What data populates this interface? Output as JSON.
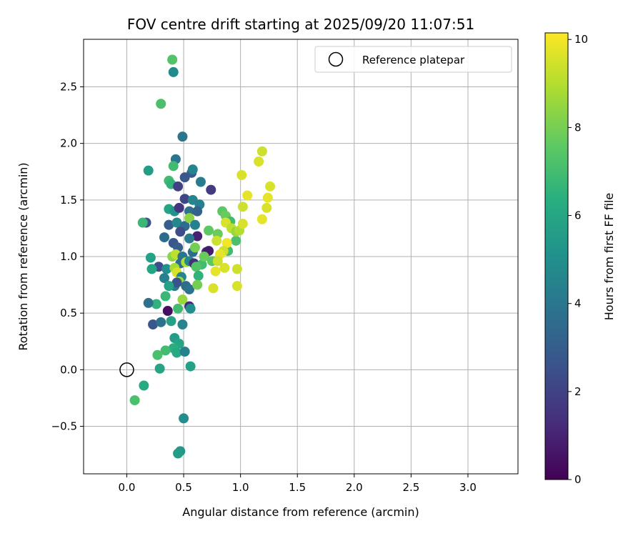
{
  "chart_data": {
    "type": "scatter",
    "title": "FOV centre drift starting at 2025/09/20 11:07:51",
    "xlabel": "Angular distance from reference (arcmin)",
    "ylabel": "Rotation from reference (arcmin)",
    "xlim": [
      -0.38,
      3.44
    ],
    "ylim": [
      -0.92,
      2.92
    ],
    "x_ticks": [
      0.0,
      0.5,
      1.0,
      1.5,
      2.0,
      2.5,
      3.0
    ],
    "x_tick_labels": [
      "0.0",
      "0.5",
      "1.0",
      "1.5",
      "2.0",
      "2.5",
      "3.0"
    ],
    "y_ticks": [
      -0.5,
      0.0,
      0.5,
      1.0,
      1.5,
      2.0,
      2.5
    ],
    "y_tick_labels": [
      "−0.5",
      "0.0",
      "0.5",
      "1.0",
      "1.5",
      "2.0",
      "2.5"
    ],
    "grid": true,
    "legend": {
      "position": "top-right",
      "entries": [
        {
          "label": "Reference platepar",
          "marker": "open-circle"
        }
      ]
    },
    "reference_point": {
      "x": 0.0,
      "y": 0.0,
      "label": "Reference platepar"
    },
    "colorbar": {
      "label": "Hours from first FF file",
      "range": [
        0,
        10.15
      ],
      "ticks": [
        0,
        2,
        4,
        6,
        8,
        10
      ],
      "tick_labels": [
        "0",
        "2",
        "4",
        "6",
        "8",
        "10"
      ],
      "colormap": "viridis"
    },
    "series": [
      {
        "name": "FOV centre",
        "points": [
          {
            "x": 0.4,
            "y": 2.74,
            "c": 7.4
          },
          {
            "x": 0.41,
            "y": 2.63,
            "c": 4.8
          },
          {
            "x": 0.3,
            "y": 2.35,
            "c": 7.2
          },
          {
            "x": 0.49,
            "y": 2.06,
            "c": 4.0
          },
          {
            "x": 0.43,
            "y": 1.86,
            "c": 4.0
          },
          {
            "x": 0.19,
            "y": 1.76,
            "c": 5.6
          },
          {
            "x": 0.41,
            "y": 1.8,
            "c": 7.0
          },
          {
            "x": 0.37,
            "y": 1.67,
            "c": 7.0
          },
          {
            "x": 0.39,
            "y": 1.64,
            "c": 6.6
          },
          {
            "x": 0.57,
            "y": 1.74,
            "c": 3.0
          },
          {
            "x": 0.58,
            "y": 1.77,
            "c": 4.6
          },
          {
            "x": 0.51,
            "y": 1.7,
            "c": 2.8
          },
          {
            "x": 0.45,
            "y": 1.62,
            "c": 2.0
          },
          {
            "x": 0.65,
            "y": 1.66,
            "c": 4.2
          },
          {
            "x": 0.74,
            "y": 1.59,
            "c": 1.8
          },
          {
            "x": 0.51,
            "y": 1.51,
            "c": 2.2
          },
          {
            "x": 0.58,
            "y": 1.5,
            "c": 4.6
          },
          {
            "x": 0.64,
            "y": 1.46,
            "c": 4.4
          },
          {
            "x": 0.37,
            "y": 1.42,
            "c": 6.0
          },
          {
            "x": 0.42,
            "y": 1.4,
            "c": 5.2
          },
          {
            "x": 0.46,
            "y": 1.43,
            "c": 1.6
          },
          {
            "x": 0.55,
            "y": 1.4,
            "c": 3.8
          },
          {
            "x": 0.62,
            "y": 1.4,
            "c": 3.2
          },
          {
            "x": 0.17,
            "y": 1.3,
            "c": 2.6
          },
          {
            "x": 0.14,
            "y": 1.3,
            "c": 6.8
          },
          {
            "x": 0.37,
            "y": 1.28,
            "c": 3.0
          },
          {
            "x": 0.44,
            "y": 1.3,
            "c": 4.8
          },
          {
            "x": 0.51,
            "y": 1.27,
            "c": 3.6
          },
          {
            "x": 0.55,
            "y": 1.34,
            "c": 8.4
          },
          {
            "x": 0.6,
            "y": 1.28,
            "c": 4.4
          },
          {
            "x": 0.47,
            "y": 1.22,
            "c": 2.4
          },
          {
            "x": 0.62,
            "y": 1.18,
            "c": 1.0
          },
          {
            "x": 0.33,
            "y": 1.17,
            "c": 3.6
          },
          {
            "x": 0.41,
            "y": 1.12,
            "c": 2.8
          },
          {
            "x": 0.45,
            "y": 1.08,
            "c": 3.0
          },
          {
            "x": 0.55,
            "y": 1.16,
            "c": 4.2
          },
          {
            "x": 0.58,
            "y": 1.04,
            "c": 3.6
          },
          {
            "x": 0.6,
            "y": 1.08,
            "c": 8.0
          },
          {
            "x": 0.7,
            "y": 1.04,
            "c": 1.2
          },
          {
            "x": 0.72,
            "y": 1.05,
            "c": 0.8
          },
          {
            "x": 0.21,
            "y": 0.99,
            "c": 5.8
          },
          {
            "x": 0.4,
            "y": 1.0,
            "c": 8.4
          },
          {
            "x": 0.43,
            "y": 1.02,
            "c": 9.2
          },
          {
            "x": 0.49,
            "y": 1.0,
            "c": 4.0
          },
          {
            "x": 0.47,
            "y": 0.94,
            "c": 3.6
          },
          {
            "x": 0.52,
            "y": 0.95,
            "c": 9.0
          },
          {
            "x": 0.55,
            "y": 0.96,
            "c": 4.8
          },
          {
            "x": 0.59,
            "y": 0.94,
            "c": 1.4
          },
          {
            "x": 0.66,
            "y": 0.93,
            "c": 7.0
          },
          {
            "x": 0.61,
            "y": 0.91,
            "c": 7.4
          },
          {
            "x": 0.28,
            "y": 0.91,
            "c": 2.4
          },
          {
            "x": 0.22,
            "y": 0.89,
            "c": 6.0
          },
          {
            "x": 0.35,
            "y": 0.89,
            "c": 5.0
          },
          {
            "x": 0.42,
            "y": 0.9,
            "c": 8.8
          },
          {
            "x": 0.44,
            "y": 0.86,
            "c": 9.6
          },
          {
            "x": 0.48,
            "y": 0.82,
            "c": 4.6
          },
          {
            "x": 0.46,
            "y": 0.78,
            "c": 8.6
          },
          {
            "x": 0.33,
            "y": 0.81,
            "c": 4.4
          },
          {
            "x": 0.42,
            "y": 0.74,
            "c": 4.2
          },
          {
            "x": 0.44,
            "y": 0.77,
            "c": 2.6
          },
          {
            "x": 0.52,
            "y": 0.74,
            "c": 3.6
          },
          {
            "x": 0.55,
            "y": 0.71,
            "c": 3.8
          },
          {
            "x": 0.37,
            "y": 0.74,
            "c": 5.8
          },
          {
            "x": 0.49,
            "y": 0.62,
            "c": 8.6
          },
          {
            "x": 0.34,
            "y": 0.65,
            "c": 6.8
          },
          {
            "x": 0.26,
            "y": 0.58,
            "c": 6.6
          },
          {
            "x": 0.19,
            "y": 0.59,
            "c": 3.8
          },
          {
            "x": 0.36,
            "y": 0.52,
            "c": 0.4
          },
          {
            "x": 0.55,
            "y": 0.56,
            "c": 1.2
          },
          {
            "x": 0.45,
            "y": 0.54,
            "c": 7.0
          },
          {
            "x": 0.56,
            "y": 0.54,
            "c": 5.0
          },
          {
            "x": 0.23,
            "y": 0.4,
            "c": 2.8
          },
          {
            "x": 0.3,
            "y": 0.42,
            "c": 3.8
          },
          {
            "x": 0.39,
            "y": 0.43,
            "c": 5.8
          },
          {
            "x": 0.49,
            "y": 0.4,
            "c": 4.6
          },
          {
            "x": 0.42,
            "y": 0.28,
            "c": 5.6
          },
          {
            "x": 0.46,
            "y": 0.23,
            "c": 6.0
          },
          {
            "x": 0.41,
            "y": 0.19,
            "c": 6.4
          },
          {
            "x": 0.34,
            "y": 0.17,
            "c": 7.0
          },
          {
            "x": 0.44,
            "y": 0.15,
            "c": 6.2
          },
          {
            "x": 0.51,
            "y": 0.16,
            "c": 4.4
          },
          {
            "x": 0.27,
            "y": 0.13,
            "c": 7.2
          },
          {
            "x": 0.56,
            "y": 0.03,
            "c": 5.8
          },
          {
            "x": 0.29,
            "y": 0.01,
            "c": 6.0
          },
          {
            "x": 0.15,
            "y": -0.14,
            "c": 6.2
          },
          {
            "x": 0.07,
            "y": -0.27,
            "c": 7.2
          },
          {
            "x": 0.5,
            "y": -0.43,
            "c": 5.0
          },
          {
            "x": 0.47,
            "y": -0.72,
            "c": 5.4
          },
          {
            "x": 0.45,
            "y": -0.74,
            "c": 5.6
          },
          {
            "x": 0.72,
            "y": 1.23,
            "c": 7.6
          },
          {
            "x": 0.8,
            "y": 1.2,
            "c": 7.8
          },
          {
            "x": 0.84,
            "y": 1.4,
            "c": 7.6
          },
          {
            "x": 0.87,
            "y": 1.36,
            "c": 7.8
          },
          {
            "x": 0.91,
            "y": 1.31,
            "c": 7.0
          },
          {
            "x": 0.96,
            "y": 1.14,
            "c": 7.2
          },
          {
            "x": 0.89,
            "y": 1.05,
            "c": 7.0
          },
          {
            "x": 0.68,
            "y": 1.0,
            "c": 7.8
          },
          {
            "x": 0.75,
            "y": 0.96,
            "c": 7.6
          },
          {
            "x": 0.63,
            "y": 0.83,
            "c": 6.6
          },
          {
            "x": 0.62,
            "y": 0.75,
            "c": 8.0
          },
          {
            "x": 0.87,
            "y": 1.3,
            "c": 9.6
          },
          {
            "x": 0.92,
            "y": 1.25,
            "c": 9.2
          },
          {
            "x": 0.96,
            "y": 1.22,
            "c": 8.6
          },
          {
            "x": 0.99,
            "y": 1.23,
            "c": 9.0
          },
          {
            "x": 1.02,
            "y": 1.29,
            "c": 9.6
          },
          {
            "x": 0.79,
            "y": 1.14,
            "c": 9.4
          },
          {
            "x": 0.88,
            "y": 1.12,
            "c": 10.0
          },
          {
            "x": 0.85,
            "y": 1.05,
            "c": 9.4
          },
          {
            "x": 0.82,
            "y": 1.02,
            "c": 9.8
          },
          {
            "x": 0.8,
            "y": 0.96,
            "c": 9.4
          },
          {
            "x": 0.86,
            "y": 0.9,
            "c": 9.6
          },
          {
            "x": 0.78,
            "y": 0.87,
            "c": 9.8
          },
          {
            "x": 0.76,
            "y": 0.72,
            "c": 9.6
          },
          {
            "x": 0.97,
            "y": 0.89,
            "c": 9.4
          },
          {
            "x": 0.97,
            "y": 0.74,
            "c": 9.6
          },
          {
            "x": 1.02,
            "y": 1.44,
            "c": 9.4
          },
          {
            "x": 1.01,
            "y": 1.72,
            "c": 9.6
          },
          {
            "x": 1.06,
            "y": 1.54,
            "c": 9.8
          },
          {
            "x": 1.16,
            "y": 1.84,
            "c": 9.6
          },
          {
            "x": 1.19,
            "y": 1.93,
            "c": 9.4
          },
          {
            "x": 1.24,
            "y": 1.52,
            "c": 9.8
          },
          {
            "x": 1.26,
            "y": 1.62,
            "c": 9.6
          },
          {
            "x": 1.23,
            "y": 1.43,
            "c": 9.6
          },
          {
            "x": 1.19,
            "y": 1.33,
            "c": 9.8
          }
        ]
      }
    ]
  }
}
